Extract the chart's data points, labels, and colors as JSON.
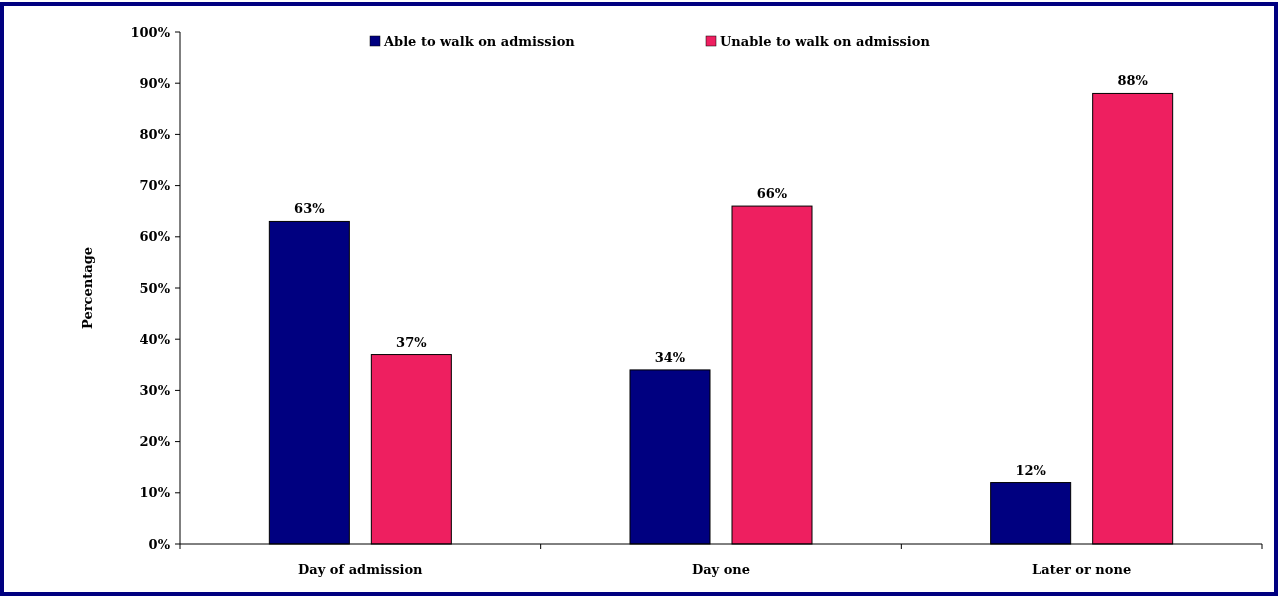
{
  "chart_data": {
    "type": "bar",
    "ylabel": "Percentage",
    "categories": [
      "Day of admission",
      "Day one",
      "Later or none"
    ],
    "series": [
      {
        "name": "Able to walk on admission",
        "color": "#000080",
        "values": [
          63,
          34,
          12
        ],
        "value_labels": [
          "63%",
          "34%",
          "12%"
        ]
      },
      {
        "name": "Unable to walk on admission",
        "color": "#ee1f60",
        "values": [
          37,
          66,
          88
        ],
        "value_labels": [
          "37%",
          "66%",
          "88%"
        ]
      }
    ],
    "ylim": [
      0,
      100
    ],
    "yticks": [
      {
        "value": 0,
        "label": "0%"
      },
      {
        "value": 10,
        "label": "10%"
      },
      {
        "value": 20,
        "label": "20%"
      },
      {
        "value": 30,
        "label": "30%"
      },
      {
        "value": 40,
        "label": "40%"
      },
      {
        "value": 50,
        "label": "50%"
      },
      {
        "value": 60,
        "label": "60%"
      },
      {
        "value": 70,
        "label": "70%"
      },
      {
        "value": 80,
        "label": "80%"
      },
      {
        "value": 90,
        "label": "90%"
      },
      {
        "value": 100,
        "label": "100%"
      }
    ],
    "grid": false,
    "legend": "top"
  }
}
